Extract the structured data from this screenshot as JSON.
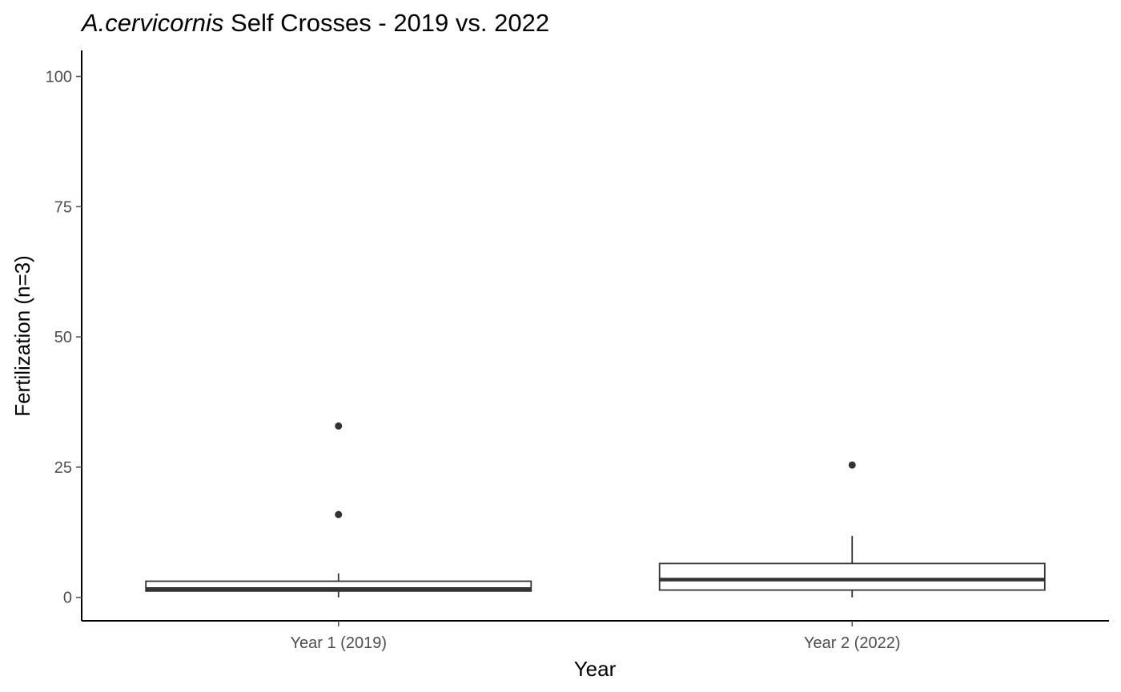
{
  "chart_data": {
    "type": "box",
    "title_italic": "A.cervicornis",
    "title_rest": " Self Crosses - 2019 vs. 2022",
    "xlabel": "Year",
    "ylabel": "Fertilization (n=3)",
    "ylim": [
      -4.5,
      105
    ],
    "yticks": [
      0,
      25,
      50,
      75,
      100
    ],
    "ytick_labels": [
      "0",
      "25",
      "50",
      "75",
      "100"
    ],
    "grid": false,
    "categories": [
      "Year 1 (2019)",
      "Year 2 (2022)"
    ],
    "boxes": [
      {
        "category": "Year 1 (2019)",
        "whisker_low": 0,
        "q1": 1.2,
        "median": 1.6,
        "q3": 3.1,
        "whisker_high": 4.6,
        "outliers": [
          15.9,
          32.9
        ]
      },
      {
        "category": "Year 2 (2022)",
        "whisker_low": 0,
        "q1": 1.4,
        "median": 3.4,
        "q3": 6.5,
        "whisker_high": 11.8,
        "outliers": [
          25.4
        ]
      }
    ],
    "colors": {
      "box_stroke": "#333333",
      "box_fill": "#ffffff",
      "outlier": "#333333",
      "axis": "#000000",
      "tick_label": "#4d4d4d",
      "text": "#000000"
    }
  }
}
